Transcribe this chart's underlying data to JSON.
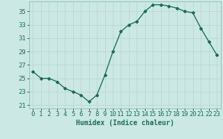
{
  "x": [
    0,
    1,
    2,
    3,
    4,
    5,
    6,
    7,
    8,
    9,
    10,
    11,
    12,
    13,
    14,
    15,
    16,
    17,
    18,
    19,
    20,
    21,
    22,
    23
  ],
  "y": [
    26.0,
    25.0,
    25.0,
    24.5,
    23.5,
    23.0,
    22.5,
    21.5,
    22.5,
    25.5,
    29.0,
    32.0,
    33.0,
    33.5,
    35.0,
    36.0,
    36.0,
    35.8,
    35.5,
    35.0,
    34.8,
    32.5,
    30.5,
    28.5
  ],
  "xlabel": "Humidex (Indice chaleur)",
  "xlim": [
    -0.5,
    23.5
  ],
  "ylim": [
    20.5,
    36.5
  ],
  "yticks": [
    21,
    23,
    25,
    27,
    29,
    31,
    33,
    35
  ],
  "xticks": [
    0,
    1,
    2,
    3,
    4,
    5,
    6,
    7,
    8,
    9,
    10,
    11,
    12,
    13,
    14,
    15,
    16,
    17,
    18,
    19,
    20,
    21,
    22,
    23
  ],
  "line_color": "#1a6b5a",
  "marker": "D",
  "marker_size": 2.0,
  "line_width": 1.0,
  "bg_color": "#cce8e4",
  "grid_color": "#b8d8d4",
  "xlabel_fontsize": 7,
  "tick_fontsize": 6.5
}
